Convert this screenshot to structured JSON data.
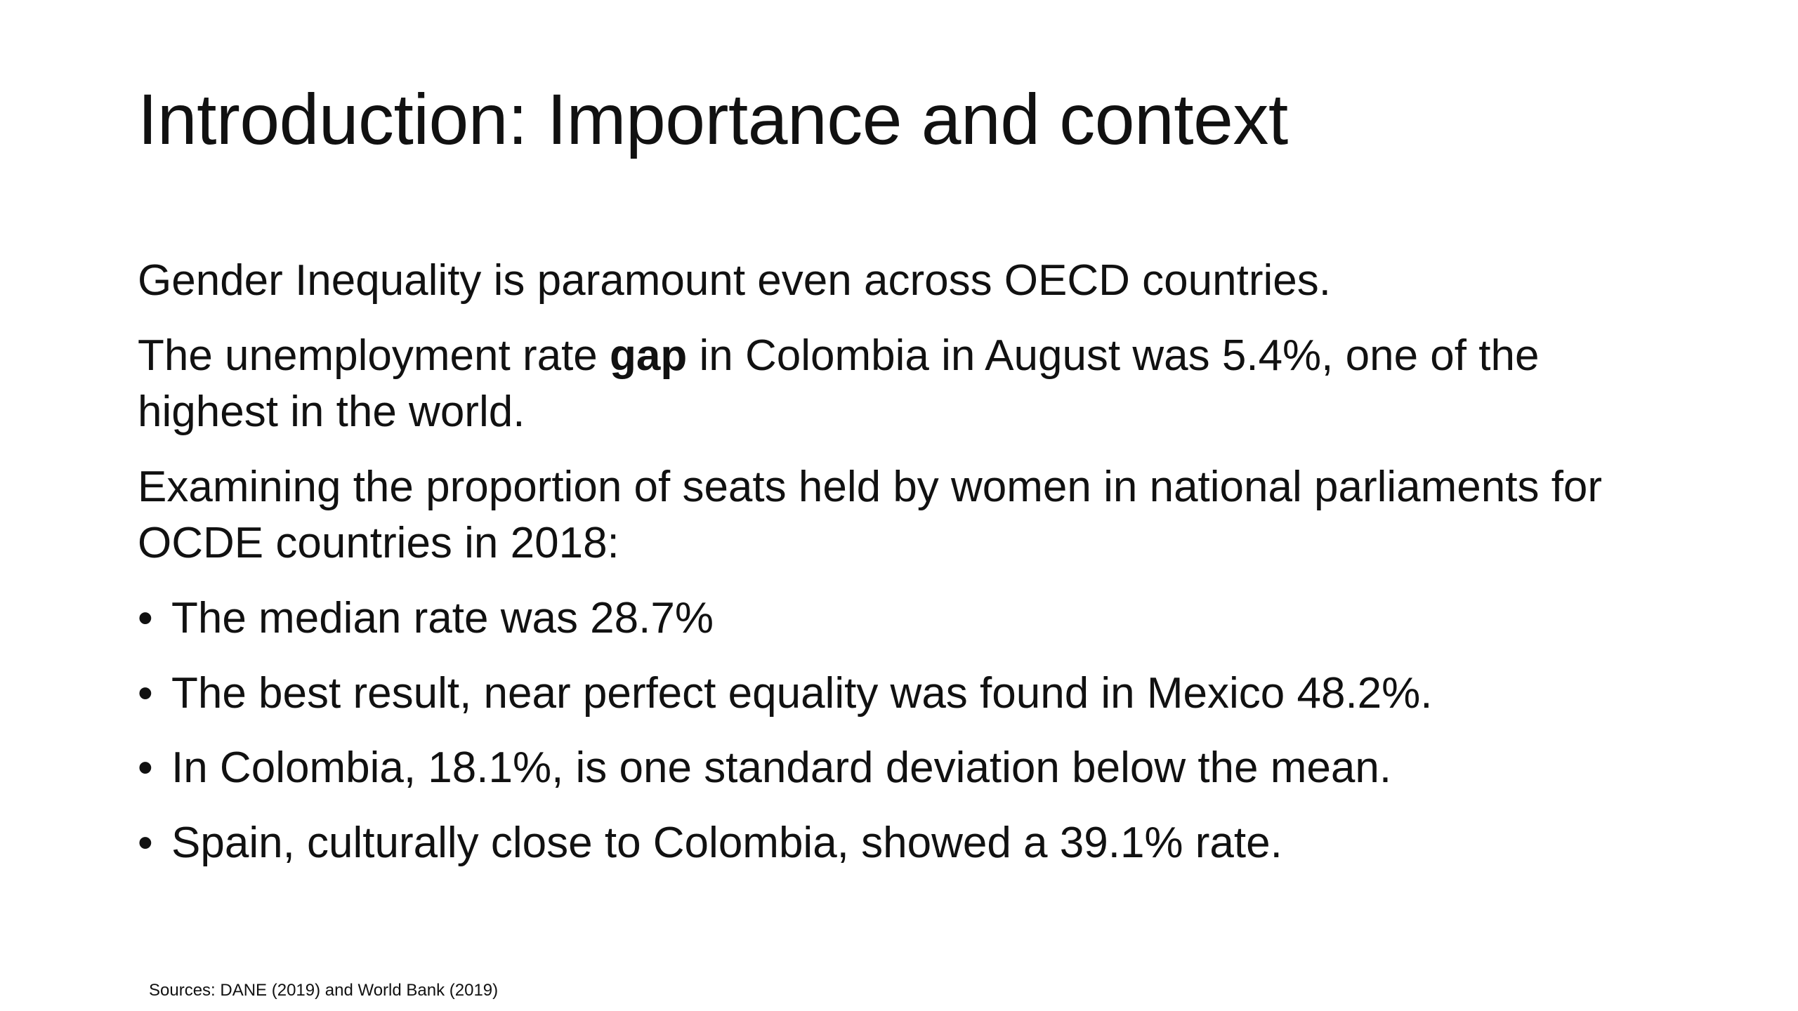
{
  "slide": {
    "title": "Introduction: Importance and context",
    "paragraphs": {
      "p1": "Gender Inequality is paramount even across OECD countries.",
      "p2": {
        "before": "The unemployment rate ",
        "bold": "gap",
        "after": " in Colombia in August was 5.4%, one of the highest in the world."
      },
      "p3": "Examining the proportion of seats held by women in national parliaments for OCDE countries in 2018:"
    },
    "bullet_symbol": "•",
    "bullets": [
      "The median rate was 28.7%",
      "The best result, near perfect equality was found in Mexico 48.2%.",
      "In Colombia, 18.1%, is one standard deviation below the mean.",
      "Spain, culturally close to Colombia, showed a 39.1% rate."
    ],
    "sources": "Sources: DANE (2019) and World Bank (2019)"
  }
}
